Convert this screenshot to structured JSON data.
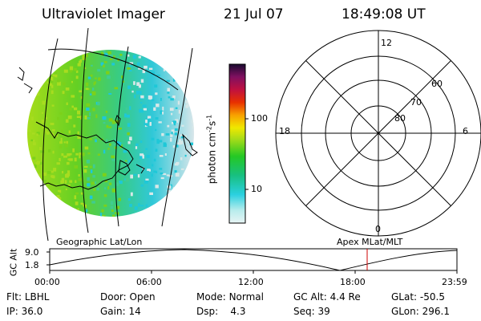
{
  "header": {
    "instrument": "Ultraviolet Imager",
    "date": "21 Jul 07",
    "time": "18:49:08 UT"
  },
  "colorbar": {
    "unit_prefix": "photon cm",
    "unit_exp1": "-2",
    "unit_mid": "s",
    "unit_exp2": "-1",
    "tick_high": "100",
    "tick_low": "10"
  },
  "polar_plot": {
    "mlt_top": "12",
    "mlt_left": "18",
    "mlt_right": "6",
    "mlt_bottom": "0",
    "lat_60": "60",
    "lat_70": "70",
    "lat_80": "80"
  },
  "timeline": {
    "left_title": "Geographic Lat/Lon",
    "right_title": "Apex MLat/MLT",
    "ylabel": "GC Alt",
    "y_high": "9.0",
    "y_low": "1.8",
    "x_ticks": [
      "00:00",
      "06:00",
      "12:00",
      "18:00",
      "23:59"
    ],
    "current_marker_color": "#cc0000"
  },
  "info": {
    "flt_label": "Flt:",
    "flt_value": "LBHL",
    "door_label": "Door:",
    "door_value": "Open",
    "mode_label": "Mode:",
    "mode_value": "Normal",
    "gcalt_label": "GC Alt:",
    "gcalt_value": "4.4 Re",
    "glat_label": "GLat:",
    "glat_value": "-50.5",
    "ip_label": "IP:",
    "ip_value": "36.0",
    "gain_label": "Gain:",
    "gain_value": "14",
    "dsp_label": "Dsp:",
    "dsp_value": "4.3",
    "seq_label": "Seq:",
    "seq_value": "39",
    "glon_label": "GLon:",
    "glon_value": "296.1"
  },
  "colors": {
    "green": "#7cd11a",
    "cyan": "#1ec8d8",
    "pale": "#d8e8e8"
  }
}
